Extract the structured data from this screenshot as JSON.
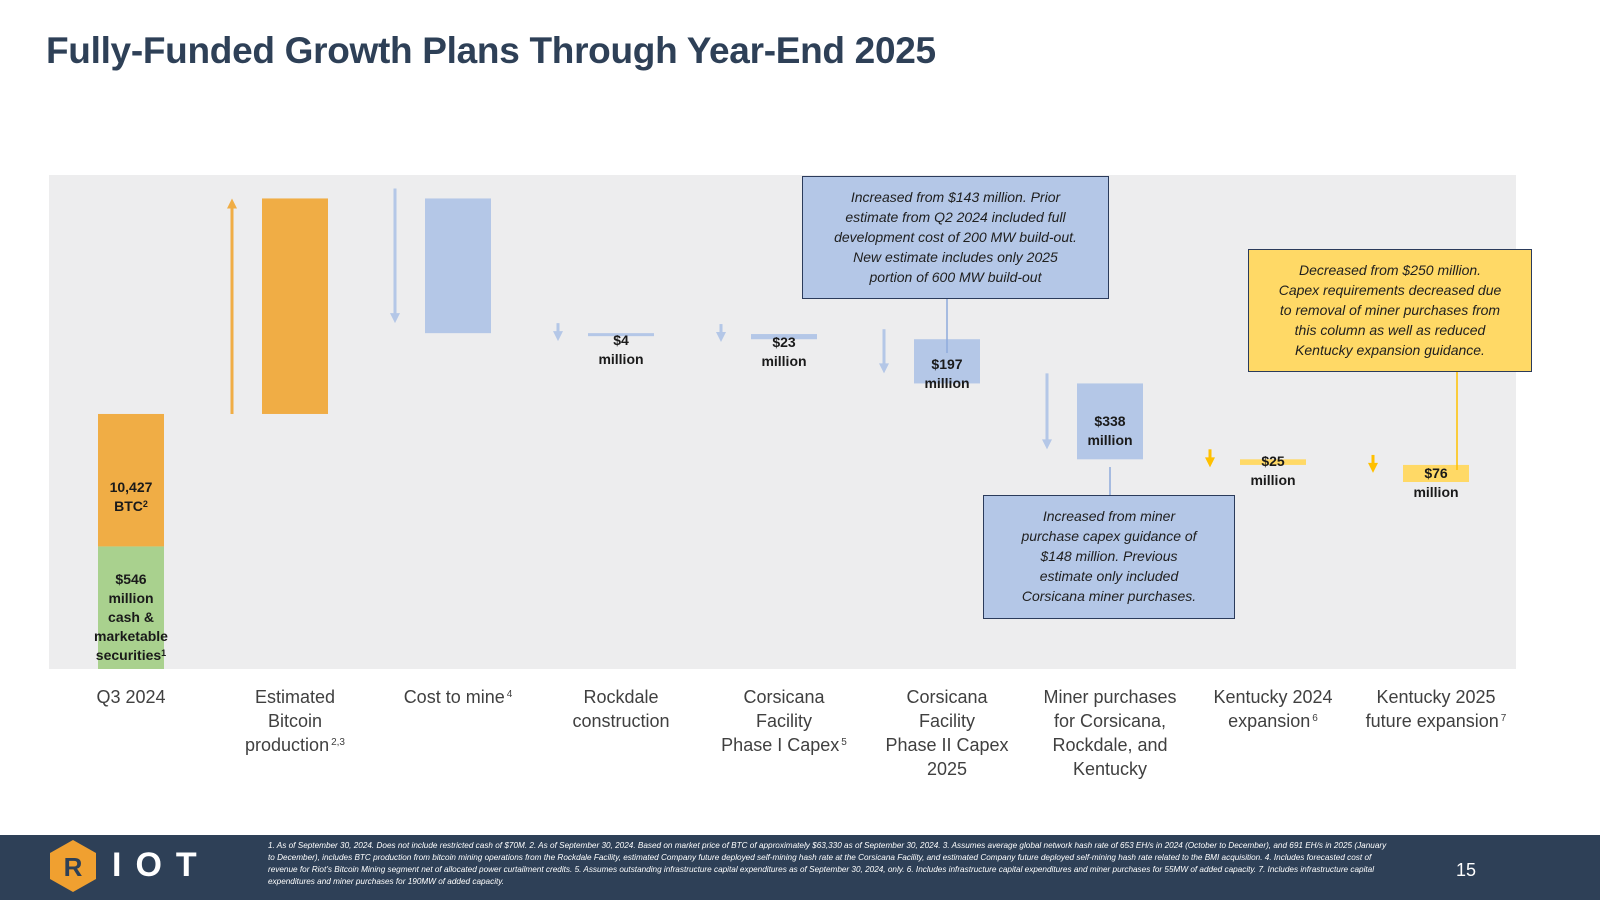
{
  "title": "Fully-Funded Growth Plans Through Year-End 2025",
  "chart_data": {
    "type": "bar",
    "subtype": "waterfall",
    "title": "Fully-Funded Growth Plans Through Year-End 2025",
    "units": "USD millions",
    "categories": [
      {
        "label": "Q3 2024",
        "sup": ""
      },
      {
        "label": "Estimated Bitcoin production",
        "sup": "2,3"
      },
      {
        "label": "Cost to mine",
        "sup": "4"
      },
      {
        "label": "Rockdale construction",
        "sup": ""
      },
      {
        "label": "Corsicana Facility Phase I Capex",
        "sup": "5"
      },
      {
        "label": "Corsicana Facility Phase II Capex 2025",
        "sup": ""
      },
      {
        "label": "Miner purchases for Corsicana, Rockdale, and Kentucky",
        "sup": ""
      },
      {
        "label": "Kentucky 2024 expansion",
        "sup": "6"
      },
      {
        "label": "Kentucky 2025 future expansion",
        "sup": "7"
      }
    ],
    "series": [
      {
        "name": "Cash & marketable securities",
        "color": "#a9d18e",
        "values": [
          546,
          null,
          null,
          null,
          null,
          null,
          null,
          null,
          null
        ]
      },
      {
        "name": "BTC holdings",
        "color": "#f0ad45",
        "values": [
          590,
          null,
          null,
          null,
          null,
          null,
          null,
          null,
          null
        ]
      },
      {
        "name": "Estimated Bitcoin production (increase)",
        "color": "#f0ad45",
        "values": [
          null,
          960,
          null,
          null,
          null,
          null,
          null,
          null,
          null
        ]
      },
      {
        "name": "Cost to mine (decrease)",
        "color": "#b4c7e7",
        "values": [
          null,
          null,
          -600,
          null,
          null,
          null,
          null,
          null,
          null
        ]
      },
      {
        "name": "Capex (decrease)",
        "color": "#b4c7e7",
        "values": [
          null,
          null,
          null,
          -4,
          -23,
          -197,
          -338,
          null,
          null
        ]
      },
      {
        "name": "Kentucky expansion (decrease)",
        "color": "#ffd966",
        "values": [
          null,
          null,
          null,
          null,
          null,
          null,
          null,
          -25,
          -76
        ]
      }
    ],
    "data_labels": [
      {
        "index": 0,
        "segment": "cash",
        "lines": [
          "$546",
          "million",
          "cash &",
          "marketable",
          "securities"
        ],
        "sup": "1"
      },
      {
        "index": 0,
        "segment": "btc",
        "lines": [
          "10,427",
          "BTC"
        ],
        "sup": "2"
      },
      {
        "index": 3,
        "lines": [
          "$4",
          "million"
        ]
      },
      {
        "index": 4,
        "lines": [
          "$23",
          "million"
        ]
      },
      {
        "index": 5,
        "lines": [
          "$197",
          "million"
        ]
      },
      {
        "index": 6,
        "lines": [
          "$338",
          "million"
        ]
      },
      {
        "index": 7,
        "lines": [
          "$25",
          "million"
        ]
      },
      {
        "index": 8,
        "lines": [
          "$76",
          "million"
        ]
      }
    ],
    "annotations": [
      {
        "index": 5,
        "style": "blue",
        "lines": [
          "Increased from $143 million.  Prior",
          "estimate from Q2 2024 included full",
          "development cost of 200 MW build-out.",
          "New estimate includes only 2025",
          "portion of 600 MW build-out"
        ]
      },
      {
        "index": 6,
        "style": "blue",
        "lines": [
          "Increased from miner",
          "purchase capex guidance of",
          "$148 million. Previous",
          "estimate only included",
          "Corsicana miner purchases."
        ]
      },
      {
        "index": 8,
        "style": "yellow",
        "lines": [
          "Decreased from $250 million.",
          "Capex requirements decreased due",
          "to removal of miner purchases from",
          "this column as well as reduced",
          "Kentucky expansion guidance."
        ]
      }
    ],
    "xlabel": "",
    "ylabel": "",
    "grid": false,
    "legend": "none"
  },
  "footer": {
    "logo_text": "IOT",
    "footnote": "1. As of September 30, 2024. Does not include restricted cash of $70M. 2. As of September 30, 2024. Based on market price of BTC of approximately $63,330 as of September 30, 2024. 3. Assumes average global network hash rate of 653 EH/s in 2024 (October to December), and 691 EH/s in 2025 (January to December), includes BTC production from bitcoin mining operations from the Rockdale Facility, estimated Company future deployed self-mining hash rate at the Corsicana Facility, and estimated Company future deployed self-mining hash rate related to the BMI acquisition. 4. Includes forecasted cost of revenue for Riot’s Bitcoin Mining segment net of allocated power curtailment credits. 5. Assumes outstanding infrastructure capital expenditures as of September 30, 2024, only. 6. Includes infrastructure capital expenditures and miner purchases for 55MW of added capacity. 7. Includes infrastructure capital expenditures and miner purchases for 190MW of added capacity.",
    "page_number": "15"
  },
  "colors": {
    "title": "#2e4057",
    "footer_bg": "#2e4057",
    "orange": "#f0ad45",
    "green": "#a9d18e",
    "blue": "#b4c7e7",
    "yellow": "#ffd966",
    "plot_bg": "#ededee"
  }
}
